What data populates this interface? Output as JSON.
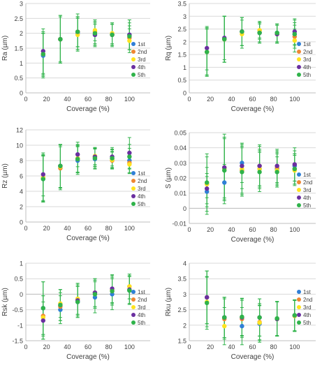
{
  "series_names": [
    "1st",
    "2nd",
    "3rd",
    "4th",
    "5th"
  ],
  "series_colors": [
    "#2f7fd6",
    "#ef8633",
    "#ffe31f",
    "#6a2fa0",
    "#2fb34a"
  ],
  "errorbar_color": "#2fb34a",
  "chart_data": [
    {
      "type": "scatter",
      "ylabel": "Ra (µm)",
      "xlabel": "Coverage (%)",
      "xlim": [
        0,
        120
      ],
      "xticks": [
        0,
        20,
        40,
        60,
        80,
        100
      ],
      "ylim": [
        0,
        3
      ],
      "yticks": [
        0,
        0.5,
        1,
        1.5,
        2,
        2.5,
        3
      ],
      "ytick_labels": [
        "0",
        "0.5",
        "1",
        "1.5",
        "2",
        "2.5",
        "3"
      ],
      "x": [
        16.7,
        33.3,
        50,
        66.7,
        83.3,
        100
      ],
      "series": [
        {
          "name": "1st",
          "y": [
            1.25,
            1.8,
            2.0,
            1.95,
            1.95,
            1.95
          ],
          "err": [
            0.75,
            0.8,
            0.55,
            0.4,
            0.4,
            0.5
          ]
        },
        {
          "name": "2nd",
          "y": [
            1.3,
            1.8,
            2.05,
            2.05,
            1.95,
            1.85
          ],
          "err": [
            0.7,
            0.8,
            0.6,
            0.4,
            0.35,
            0.4
          ]
        },
        {
          "name": "3rd",
          "y": [
            1.3,
            1.8,
            1.95,
            2.1,
            2.0,
            1.75
          ],
          "err": [
            0.7,
            0.8,
            0.55,
            0.35,
            0.35,
            0.4
          ]
        },
        {
          "name": "4th",
          "y": [
            1.4,
            1.8,
            2.05,
            1.95,
            1.95,
            1.95
          ],
          "err": [
            0.75,
            0.75,
            0.5,
            0.35,
            0.35,
            0.5
          ]
        },
        {
          "name": "5th",
          "y": [
            1.3,
            1.8,
            2.05,
            2.0,
            1.95,
            1.9
          ],
          "err": [
            0.75,
            0.8,
            0.5,
            0.4,
            0.35,
            0.45
          ]
        }
      ]
    },
    {
      "type": "scatter",
      "ylabel": "Rq (µm)",
      "xlabel": "Coverage (%)",
      "xlim": [
        0,
        120
      ],
      "xticks": [
        0,
        20,
        40,
        60,
        80,
        100
      ],
      "ylim": [
        0,
        3.5
      ],
      "yticks": [
        0,
        0.5,
        1,
        1.5,
        2,
        2.5,
        3,
        3.5
      ],
      "ytick_labels": [
        "0",
        "0.5",
        "1",
        "1.5",
        "2",
        "2.5",
        "3",
        "3.5"
      ],
      "x": [
        16.7,
        33.3,
        50,
        66.7,
        83.3,
        100
      ],
      "series": [
        {
          "name": "1st",
          "y": [
            1.6,
            2.1,
            2.4,
            2.35,
            2.35,
            2.3
          ],
          "err": [
            0.95,
            0.9,
            0.55,
            0.4,
            0.35,
            0.55
          ]
        },
        {
          "name": "2nd",
          "y": [
            1.6,
            2.1,
            2.4,
            2.45,
            2.3,
            2.2
          ],
          "err": [
            0.9,
            0.9,
            0.55,
            0.35,
            0.35,
            0.45
          ]
        },
        {
          "name": "3rd",
          "y": [
            1.6,
            2.1,
            2.3,
            2.45,
            2.3,
            2.05
          ],
          "err": [
            0.9,
            0.9,
            0.55,
            0.3,
            0.35,
            0.45
          ]
        },
        {
          "name": "4th",
          "y": [
            1.75,
            2.15,
            2.4,
            2.35,
            2.3,
            2.4
          ],
          "err": [
            0.85,
            0.85,
            0.55,
            0.35,
            0.35,
            0.5
          ]
        },
        {
          "name": "5th",
          "y": [
            1.6,
            2.1,
            2.4,
            2.35,
            2.35,
            2.3
          ],
          "err": [
            0.95,
            0.9,
            0.55,
            0.4,
            0.35,
            0.45
          ]
        }
      ]
    },
    {
      "type": "scatter",
      "ylabel": "Rz (µm)",
      "xlabel": "Coverage (%)",
      "xlim": [
        0,
        120
      ],
      "xticks": [
        0,
        20,
        40,
        60,
        80,
        100
      ],
      "ylim": [
        0,
        12
      ],
      "yticks": [
        0,
        2,
        4,
        6,
        8,
        10,
        12
      ],
      "ytick_labels": [
        "0",
        "2",
        "4",
        "6",
        "8",
        "10",
        "12"
      ],
      "x": [
        16.7,
        33.3,
        50,
        66.7,
        83.3,
        100
      ],
      "series": [
        {
          "name": "1st",
          "y": [
            5.6,
            7.3,
            8.0,
            8.2,
            8.2,
            8.0
          ],
          "err": [
            3.0,
            2.8,
            1.8,
            1.3,
            1.2,
            1.6
          ]
        },
        {
          "name": "2nd",
          "y": [
            5.7,
            7.0,
            8.2,
            8.4,
            8.0,
            7.7
          ],
          "err": [
            3.0,
            2.8,
            1.8,
            1.2,
            1.1,
            1.3
          ]
        },
        {
          "name": "3rd",
          "y": [
            5.8,
            7.2,
            8.3,
            8.6,
            8.1,
            7.5
          ],
          "err": [
            3.0,
            2.8,
            1.8,
            1.1,
            1.1,
            1.2
          ]
        },
        {
          "name": "4th",
          "y": [
            6.2,
            7.3,
            8.8,
            8.5,
            8.5,
            9.0
          ],
          "err": [
            2.8,
            2.8,
            1.6,
            1.2,
            1.2,
            2.0
          ]
        },
        {
          "name": "5th",
          "y": [
            5.6,
            7.3,
            8.2,
            8.3,
            8.3,
            8.5
          ],
          "err": [
            3.0,
            2.8,
            1.7,
            1.3,
            1.2,
            1.6
          ]
        }
      ]
    },
    {
      "type": "scatter",
      "ylabel": "S (µm)",
      "xlabel": "Coverage (%)",
      "xlim": [
        0,
        120
      ],
      "xticks": [
        0,
        20,
        40,
        60,
        80,
        100
      ],
      "ylim": [
        -0.01,
        0.05
      ],
      "yticks": [
        -0.01,
        0,
        0.01,
        0.02,
        0.03,
        0.04,
        0.05
      ],
      "ytick_labels": [
        "-0.01",
        "0",
        "0.01",
        "0.02",
        "0.03",
        "0.04",
        "0.05"
      ],
      "x": [
        16.7,
        33.3,
        50,
        66.7,
        83.3,
        100
      ],
      "series": [
        {
          "name": "1st",
          "y": [
            0.011,
            0.017,
            0.03,
            0.026,
            0.026,
            0.028
          ],
          "err": [
            0.01,
            0.012,
            0.013,
            0.012,
            0.011,
            0.01
          ]
        },
        {
          "name": "2nd",
          "y": [
            0.016,
            0.027,
            0.025,
            0.028,
            0.027,
            0.026
          ],
          "err": [
            0.018,
            0.02,
            0.016,
            0.013,
            0.011,
            0.01
          ]
        },
        {
          "name": "3rd",
          "y": [
            0.016,
            0.026,
            0.026,
            0.026,
            0.025,
            0.025
          ],
          "err": [
            0.02,
            0.02,
            0.016,
            0.013,
            0.011,
            0.01
          ]
        },
        {
          "name": "4th",
          "y": [
            0.013,
            0.027,
            0.028,
            0.028,
            0.028,
            0.029
          ],
          "err": [
            0.01,
            0.022,
            0.015,
            0.014,
            0.011,
            0.011
          ]
        },
        {
          "name": "5th",
          "y": [
            0.017,
            0.025,
            0.024,
            0.024,
            0.024,
            0.026
          ],
          "err": [
            0.01,
            0.022,
            0.016,
            0.013,
            0.01,
            0.01
          ]
        }
      ]
    },
    {
      "type": "scatter",
      "ylabel": "Rsk (µm)",
      "xlabel": "Coverage (%)",
      "xlim": [
        0,
        120
      ],
      "xticks": [
        0,
        20,
        40,
        60,
        80,
        100
      ],
      "ylim": [
        -1.5,
        1
      ],
      "yticks": [
        -1.5,
        -1,
        -0.5,
        0,
        0.5,
        1
      ],
      "ytick_labels": [
        "-1.5",
        "-1",
        "-0.5",
        "0",
        "0.5",
        "1"
      ],
      "x": [
        16.7,
        33.3,
        50,
        66.7,
        83.3,
        100
      ],
      "series": [
        {
          "name": "1st",
          "y": [
            -0.45,
            -0.5,
            -0.25,
            -0.1,
            0.0,
            0.12
          ],
          "err": [
            0.85,
            0.45,
            0.5,
            0.5,
            0.5,
            0.45
          ]
        },
        {
          "name": "2nd",
          "y": [
            -0.7,
            -0.4,
            -0.15,
            0.05,
            0.1,
            0.25
          ],
          "err": [
            0.65,
            0.45,
            0.5,
            0.45,
            0.45,
            0.4
          ]
        },
        {
          "name": "3rd",
          "y": [
            -0.75,
            -0.3,
            -0.15,
            0.0,
            0.15,
            0.25
          ],
          "err": [
            0.7,
            0.45,
            0.5,
            0.45,
            0.45,
            0.4
          ]
        },
        {
          "name": "4th",
          "y": [
            -0.85,
            -0.35,
            -0.2,
            0.05,
            0.18,
            0.15
          ],
          "err": [
            0.6,
            0.5,
            0.5,
            0.45,
            0.45,
            0.45
          ]
        },
        {
          "name": "5th",
          "y": [
            -0.45,
            -0.35,
            -0.25,
            0.0,
            0.1,
            0.12
          ],
          "err": [
            0.85,
            0.5,
            0.5,
            0.45,
            0.45,
            0.45
          ]
        }
      ]
    },
    {
      "type": "scatter",
      "ylabel": "Rku (µm)",
      "xlabel": "Coverage (%)",
      "xlim": [
        0,
        120
      ],
      "xticks": [
        0,
        20,
        40,
        60,
        80,
        100
      ],
      "ylim": [
        1.5,
        4
      ],
      "yticks": [
        1.5,
        2,
        2.5,
        3,
        3.5,
        4
      ],
      "ytick_labels": [
        "1.5",
        "2",
        "2.5",
        "3",
        "3.5",
        "4"
      ],
      "x": [
        16.7,
        33.3,
        50,
        66.7,
        83.3,
        100
      ],
      "series": [
        {
          "name": "1st",
          "y": [
            2.9,
            2.25,
            1.97,
            2.05,
            2.2,
            2.3
          ],
          "err": [
            0.85,
            0.65,
            0.6,
            0.6,
            0.55,
            0.5
          ]
        },
        {
          "name": "2nd",
          "y": [
            2.9,
            2.2,
            2.2,
            2.1,
            2.2,
            2.3
          ],
          "err": [
            0.85,
            0.65,
            0.6,
            0.6,
            0.55,
            0.5
          ]
        },
        {
          "name": "3rd",
          "y": [
            2.75,
            1.97,
            2.25,
            2.08,
            2.2,
            2.3
          ],
          "err": [
            0.8,
            0.6,
            0.6,
            0.55,
            0.55,
            0.5
          ]
        },
        {
          "name": "4th",
          "y": [
            2.9,
            2.25,
            2.25,
            2.25,
            2.2,
            2.32
          ],
          "err": [
            0.85,
            0.65,
            0.6,
            0.6,
            0.55,
            0.5
          ]
        },
        {
          "name": "5th",
          "y": [
            2.72,
            2.25,
            2.27,
            2.25,
            2.22,
            2.32
          ],
          "err": [
            0.85,
            0.65,
            0.6,
            0.6,
            0.55,
            0.5
          ]
        }
      ]
    }
  ]
}
